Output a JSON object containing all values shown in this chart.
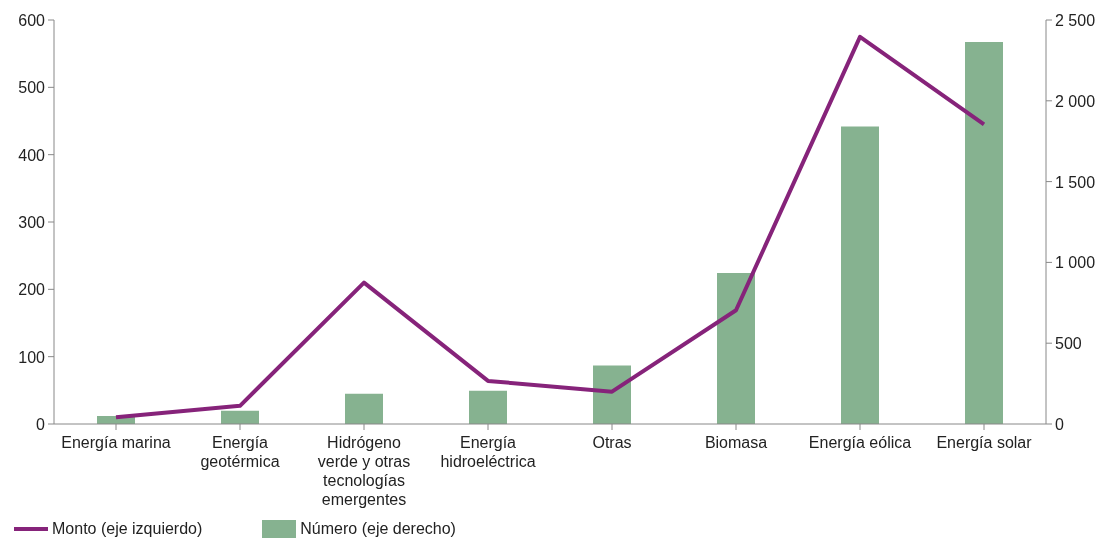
{
  "chart_data": {
    "type": "bar",
    "categories": [
      "Energía marina",
      "Energía geotérmica",
      "Hidrógeno verde y otras tecnologías emergentes",
      "Energía hidroeléctrica",
      "Otras",
      "Biomasa",
      "Energía eólica",
      "Energía solar"
    ],
    "series": [
      {
        "name": "Monto (eje izquierdo)",
        "type": "line",
        "color": "#86237a",
        "values": [
          10,
          27,
          210,
          64,
          48,
          169,
          575,
          445
        ]
      },
      {
        "name": "Número (eje derecho)",
        "axis": "y2",
        "color": "#86b290",
        "values": [
          49,
          82,
          187,
          206,
          362,
          935,
          1841,
          2364
        ]
      }
    ],
    "ylim": [
      0,
      600
    ],
    "yticks": [
      0,
      100,
      200,
      300,
      400,
      500,
      600
    ],
    "y2lim": [
      0,
      2500
    ],
    "y2ticks": [
      0,
      {
        "value": 500,
        "label": "500"
      },
      {
        "value": 1000,
        "label": "1 000"
      },
      {
        "value": 1500,
        "label": "1 500"
      },
      {
        "value": 2000,
        "label": "2 000"
      },
      {
        "value": 2500,
        "label": "2 500"
      }
    ],
    "grid": false,
    "legend": "bottom left",
    "marker": "none",
    "line_style": "solid"
  }
}
